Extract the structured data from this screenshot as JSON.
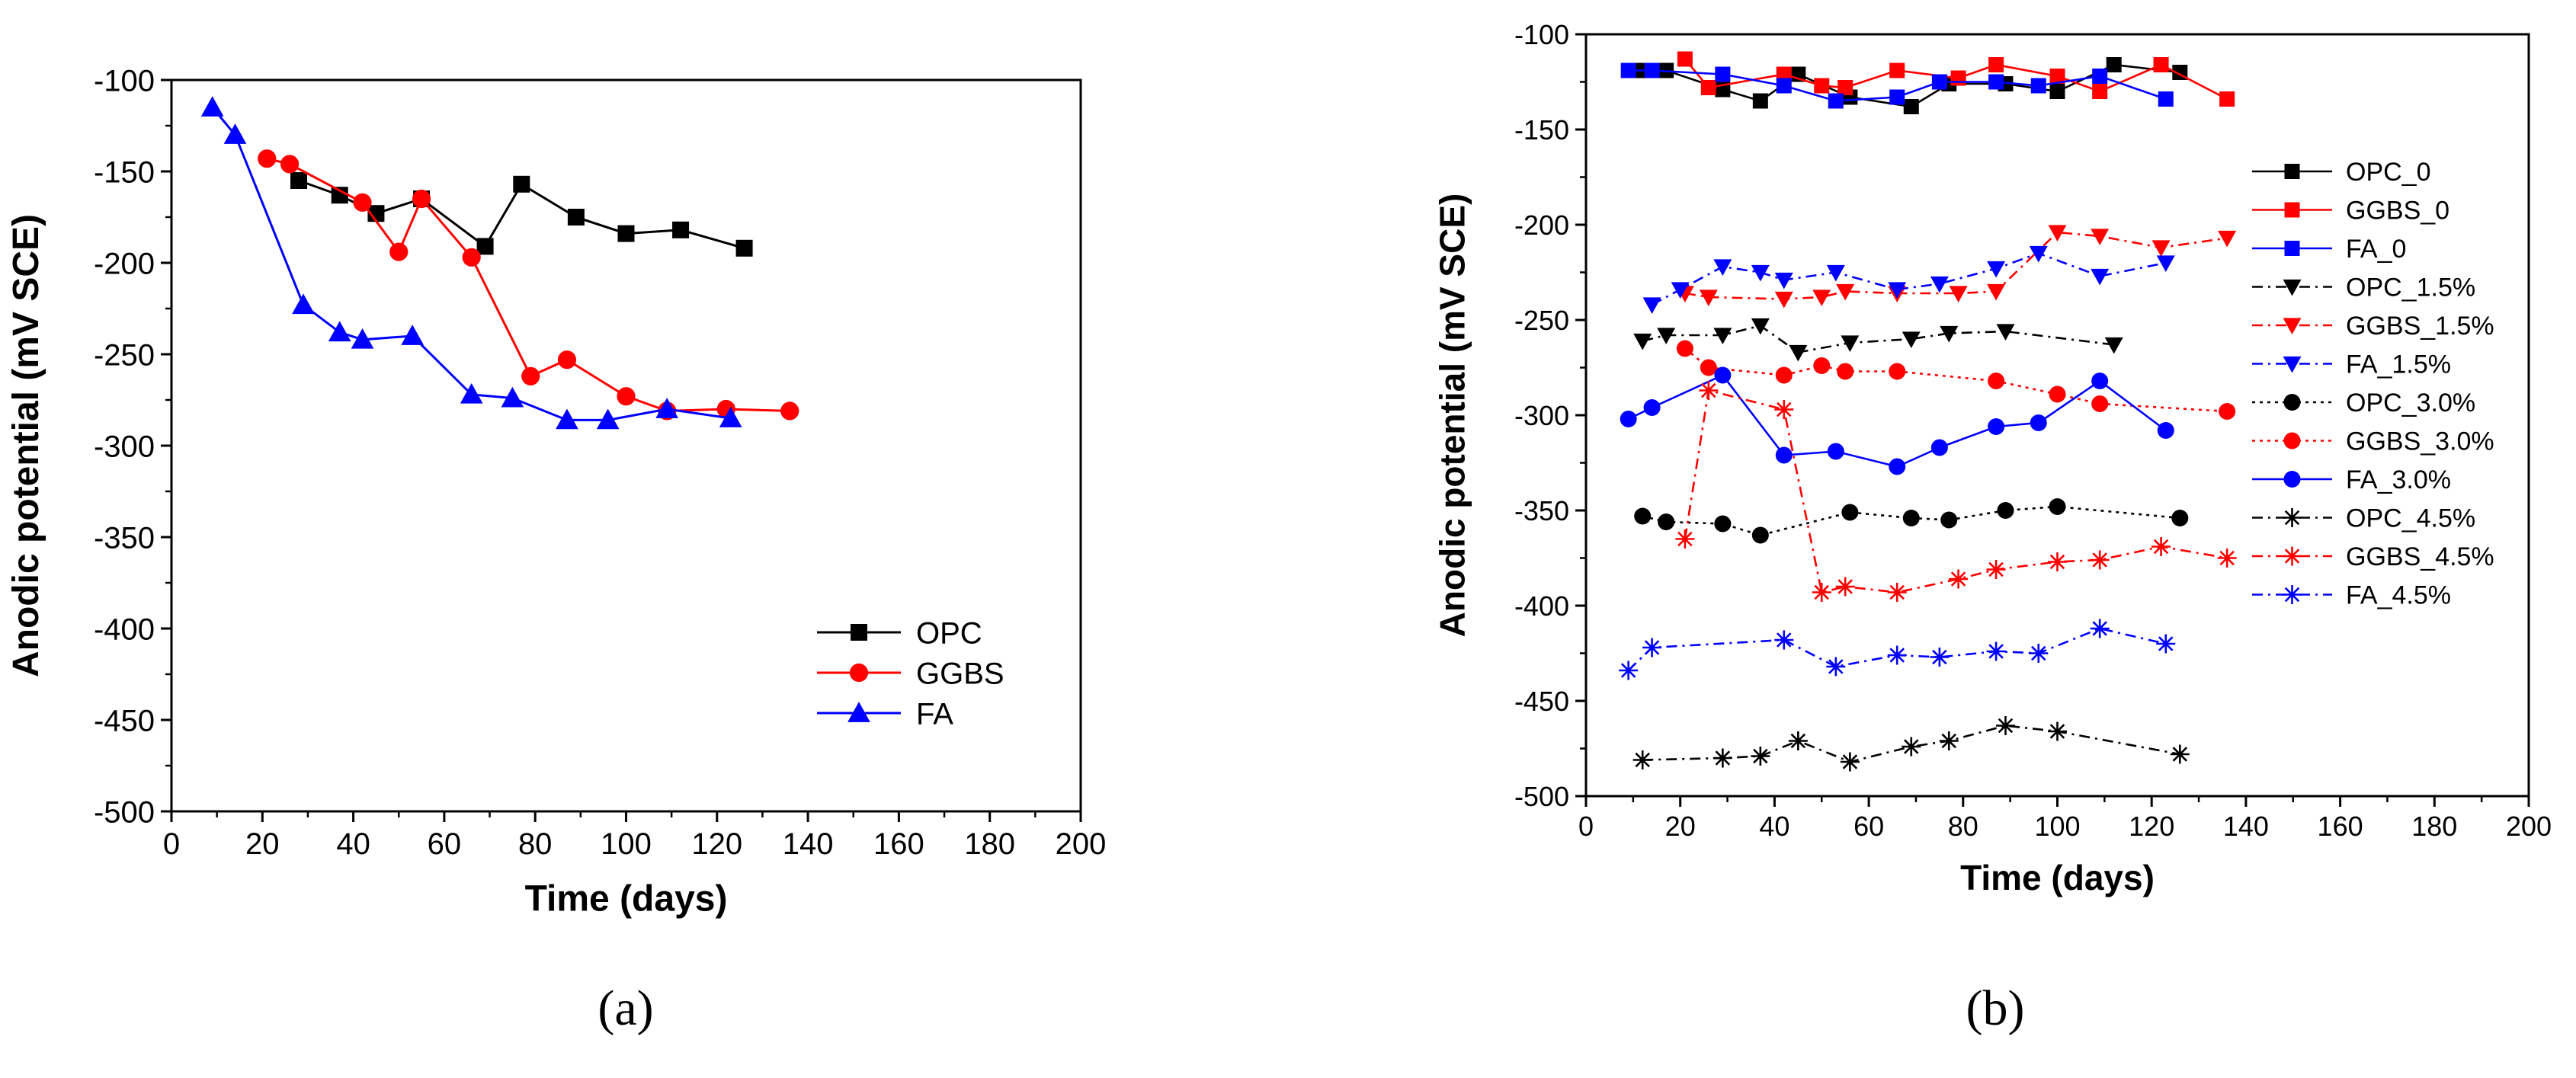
{
  "chart_data": [
    {
      "type": "line",
      "panel_label": "(a)",
      "xlabel": "Time (days)",
      "ylabel": "Anodic potential (mV SCE)",
      "xlim": [
        0,
        200
      ],
      "ylim": [
        -500,
        -100
      ],
      "xticks": [
        0,
        20,
        40,
        60,
        80,
        100,
        120,
        140,
        160,
        180,
        200
      ],
      "yticks": [
        -500,
        -450,
        -400,
        -350,
        -300,
        -250,
        -200,
        -150,
        -100
      ],
      "legend_position": "bottom-right",
      "series": [
        {
          "name": "OPC",
          "color": "#000000",
          "marker": "square",
          "dash": "solid",
          "x": [
            28,
            37,
            45,
            55,
            69,
            77,
            89,
            100,
            112,
            126
          ],
          "y": [
            -155,
            -163,
            -173,
            -165,
            -191,
            -157,
            -175,
            -184,
            -182,
            -192
          ]
        },
        {
          "name": "GGBS",
          "color": "#ff0000",
          "marker": "circle",
          "dash": "solid",
          "x": [
            21,
            26,
            42,
            50,
            55,
            66,
            79,
            87,
            100,
            109,
            122,
            136
          ],
          "y": [
            -143,
            -146,
            -167,
            -194,
            -165,
            -197,
            -262,
            -253,
            -273,
            -281,
            -280,
            -281
          ]
        },
        {
          "name": "FA",
          "color": "#0000ff",
          "marker": "triangle-up",
          "dash": "solid",
          "x": [
            9,
            14,
            29,
            37,
            42,
            53,
            66,
            75,
            87,
            96,
            109,
            123
          ],
          "y": [
            -115,
            -130,
            -223,
            -238,
            -242,
            -240,
            -272,
            -274,
            -286,
            -286,
            -280,
            -285
          ]
        }
      ]
    },
    {
      "type": "line",
      "panel_label": "(b)",
      "xlabel": "Time (days)",
      "ylabel": "Anodic potential (mV SCE)",
      "xlim": [
        0,
        200
      ],
      "ylim": [
        -500,
        -100
      ],
      "xticks": [
        0,
        20,
        40,
        60,
        80,
        100,
        120,
        140,
        160,
        180,
        200
      ],
      "yticks": [
        -500,
        -450,
        -400,
        -350,
        -300,
        -250,
        -200,
        -150,
        -100
      ],
      "legend_position": "top-right",
      "series": [
        {
          "name": "OPC_0",
          "color": "#000000",
          "marker": "square",
          "dash": "solid",
          "x": [
            12,
            17,
            29,
            37,
            45,
            56,
            69,
            77,
            89,
            100,
            112,
            126
          ],
          "y": [
            -119,
            -119,
            -129,
            -135,
            -121,
            -133,
            -138,
            -126,
            -126,
            -130,
            -116,
            -120
          ]
        },
        {
          "name": "GGBS_0",
          "color": "#ff0000",
          "marker": "square",
          "dash": "solid",
          "x": [
            21,
            26,
            42,
            50,
            55,
            66,
            79,
            87,
            100,
            109,
            122,
            136
          ],
          "y": [
            -113,
            -128,
            -121,
            -127,
            -128,
            -119,
            -123,
            -116,
            -122,
            -130,
            -116,
            -134
          ]
        },
        {
          "name": "FA_0",
          "color": "#0000ff",
          "marker": "square",
          "dash": "solid",
          "x": [
            9,
            14,
            29,
            42,
            53,
            66,
            75,
            87,
            96,
            109,
            123
          ],
          "y": [
            -119,
            -119,
            -121,
            -127,
            -135,
            -133,
            -125,
            -125,
            -127,
            -122,
            -134
          ]
        },
        {
          "name": "OPC_1.5%",
          "color": "#000000",
          "marker": "triangle-down",
          "dash": "dashdot",
          "x": [
            12,
            17,
            29,
            37,
            45,
            56,
            69,
            77,
            89,
            112
          ],
          "y": [
            -261,
            -258,
            -258,
            -253,
            -267,
            -262,
            -260,
            -257,
            -256,
            -263
          ]
        },
        {
          "name": "GGBS_1.5%",
          "color": "#ff0000",
          "marker": "triangle-down",
          "dash": "dashdot",
          "x": [
            21,
            26,
            42,
            50,
            55,
            66,
            79,
            87,
            100,
            109,
            122,
            136
          ],
          "y": [
            -236,
            -238,
            -239,
            -238,
            -235,
            -236,
            -236,
            -235,
            -204,
            -206,
            -212,
            -207
          ]
        },
        {
          "name": "FA_1.5%",
          "color": "#0000ff",
          "marker": "triangle-down",
          "dash": "dashdot",
          "x": [
            14,
            20,
            29,
            37,
            42,
            53,
            66,
            75,
            87,
            96,
            109,
            123
          ],
          "y": [
            -242,
            -234,
            -222,
            -225,
            -229,
            -225,
            -234,
            -231,
            -223,
            -215,
            -227,
            -220
          ]
        },
        {
          "name": "OPC_3.0%",
          "color": "#000000",
          "marker": "circle",
          "dash": "dotted",
          "x": [
            12,
            17,
            29,
            37,
            56,
            69,
            77,
            89,
            100,
            126
          ],
          "y": [
            -353,
            -356,
            -357,
            -363,
            -351,
            -354,
            -355,
            -350,
            -348,
            -354
          ]
        },
        {
          "name": "GGBS_3.0%",
          "color": "#ff0000",
          "marker": "circle",
          "dash": "dotted",
          "x": [
            21,
            26,
            42,
            50,
            55,
            66,
            87,
            100,
            109,
            136
          ],
          "y": [
            -265,
            -275,
            -279,
            -274,
            -277,
            -277,
            -282,
            -289,
            -294,
            -298
          ]
        },
        {
          "name": "FA_3.0%",
          "color": "#0000ff",
          "marker": "circle",
          "dash": "solid",
          "x": [
            9,
            14,
            29,
            42,
            53,
            66,
            75,
            87,
            96,
            109,
            123
          ],
          "y": [
            -302,
            -296,
            -279,
            -321,
            -319,
            -327,
            -317,
            -306,
            -304,
            -282,
            -308
          ]
        },
        {
          "name": "OPC_4.5%",
          "color": "#000000",
          "marker": "asterisk",
          "dash": "dashdot",
          "x": [
            12,
            29,
            37,
            45,
            56,
            69,
            77,
            89,
            100,
            126
          ],
          "y": [
            -481,
            -480,
            -479,
            -471,
            -482,
            -474,
            -471,
            -463,
            -466,
            -478
          ]
        },
        {
          "name": "GGBS_4.5%",
          "color": "#ff0000",
          "marker": "asterisk",
          "dash": "dashdot",
          "x": [
            21,
            26,
            42,
            50,
            55,
            66,
            79,
            87,
            100,
            109,
            122,
            136
          ],
          "y": [
            -365,
            -287,
            -297,
            -393,
            -390,
            -393,
            -386,
            -381,
            -377,
            -376,
            -369,
            -375
          ]
        },
        {
          "name": "FA_4.5%",
          "color": "#0000ff",
          "marker": "asterisk",
          "dash": "dashdot",
          "x": [
            9,
            14,
            42,
            53,
            66,
            75,
            87,
            96,
            109,
            123
          ],
          "y": [
            -434,
            -422,
            -418,
            -432,
            -426,
            -427,
            -424,
            -425,
            -412,
            -420
          ]
        }
      ]
    }
  ]
}
